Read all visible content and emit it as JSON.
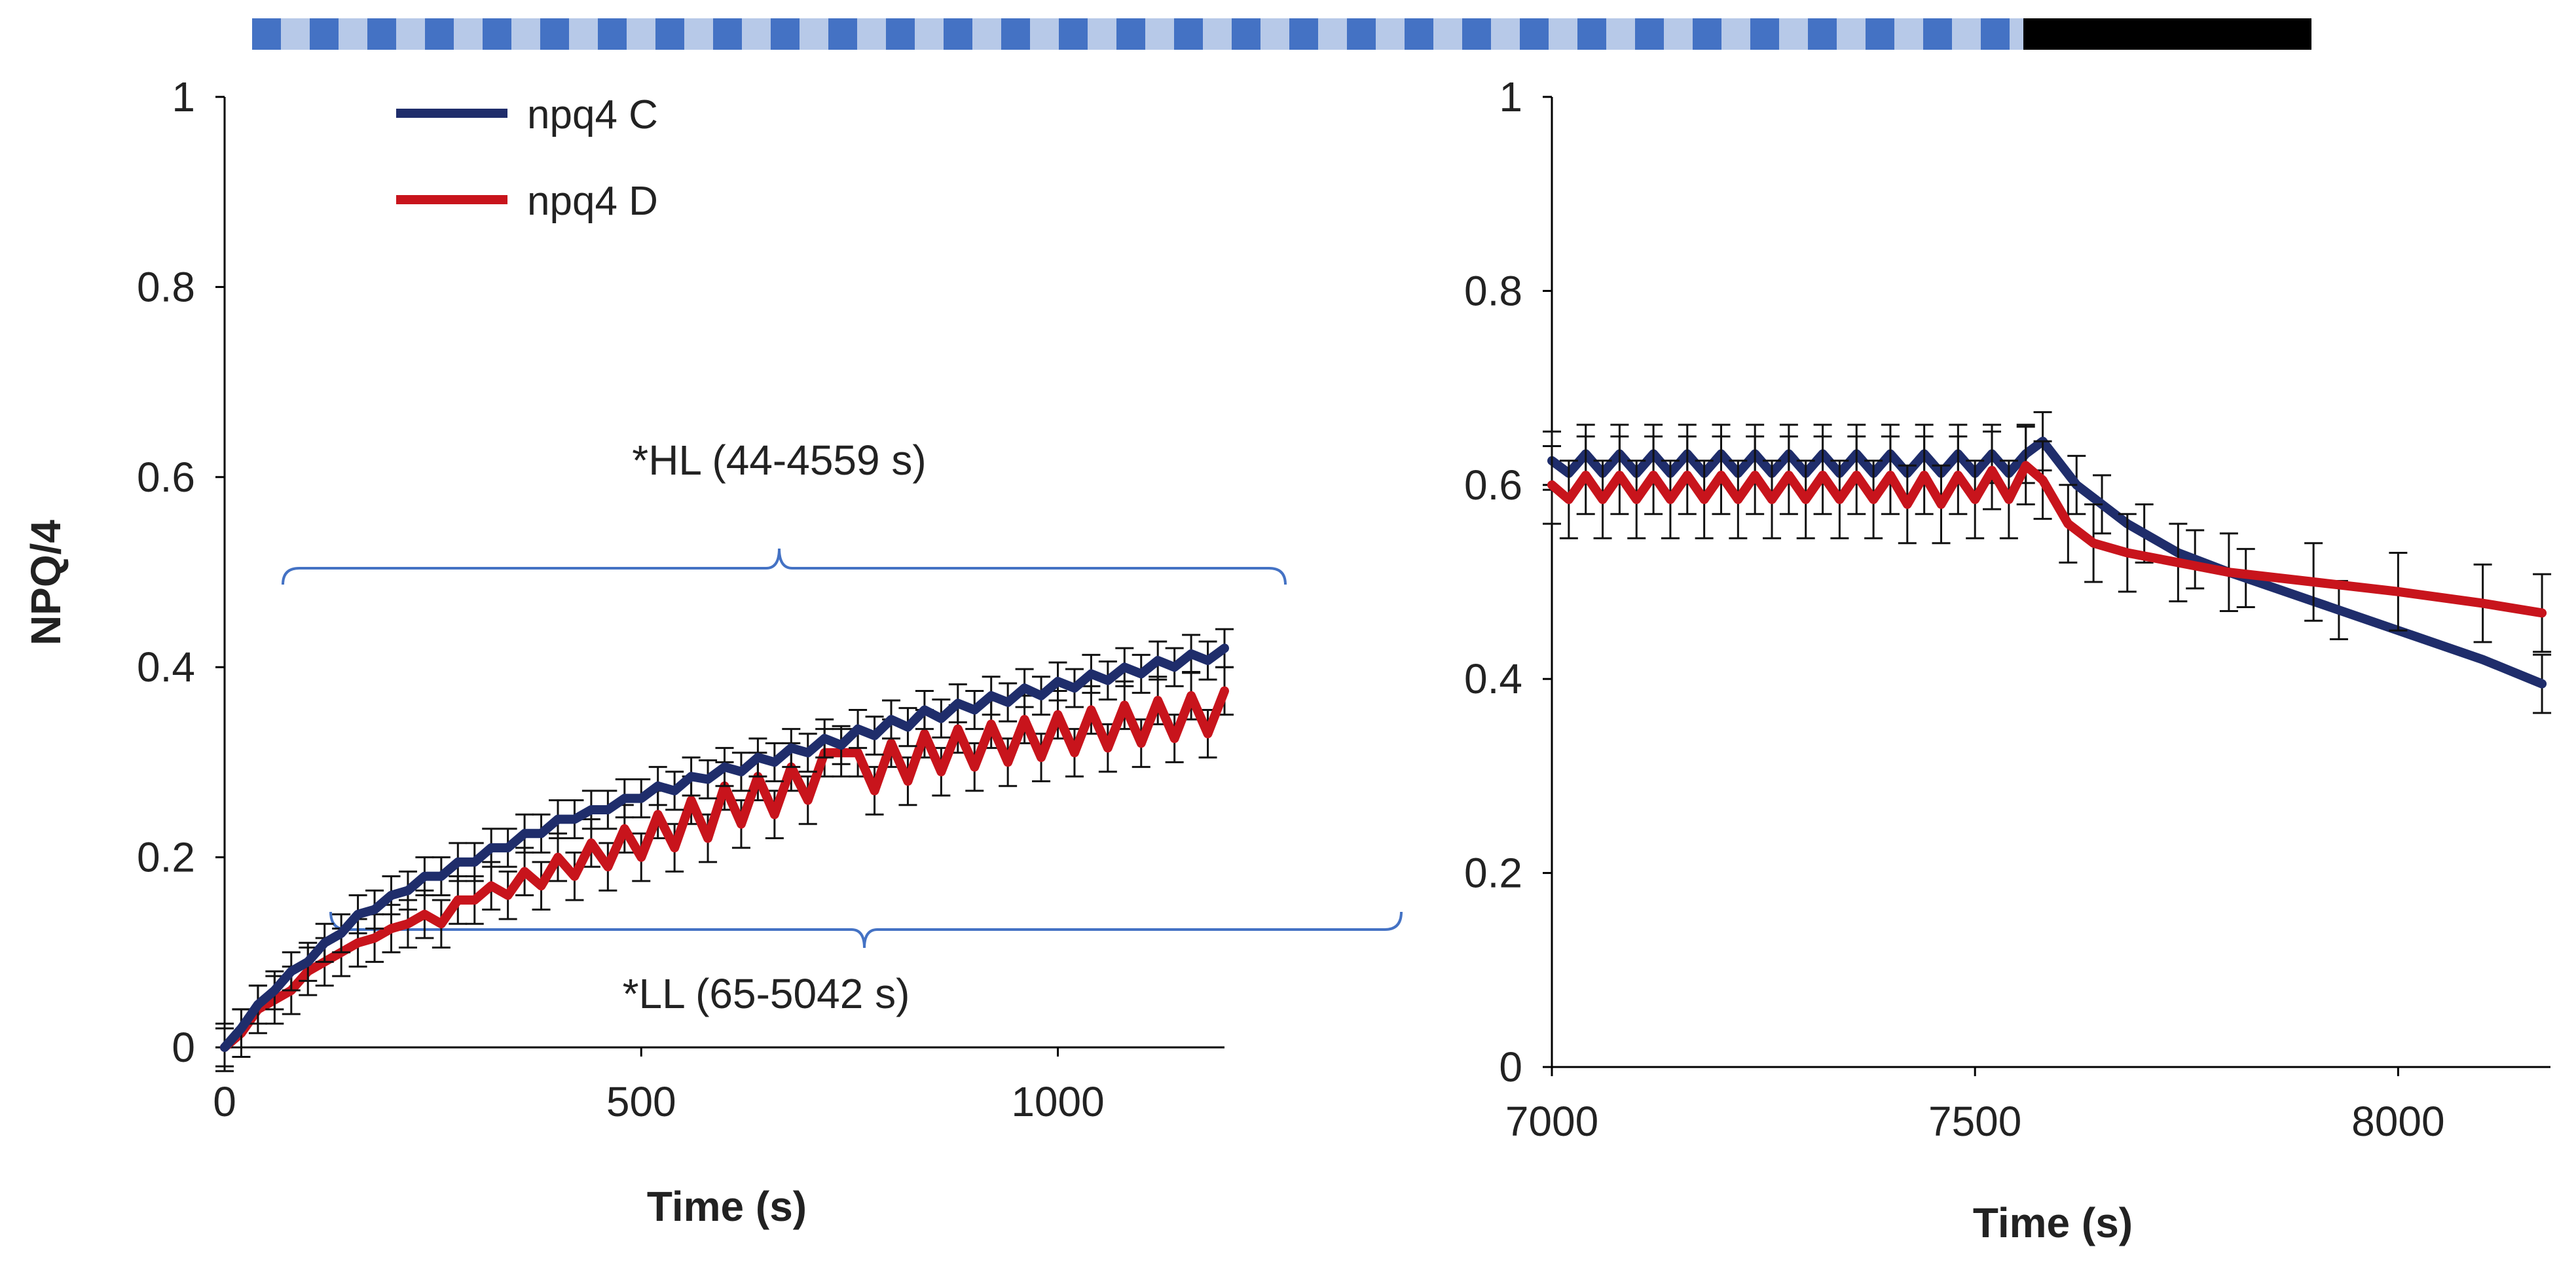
{
  "chart_data": [
    {
      "type": "line",
      "xlabel": "Time (s)",
      "ylabel": "NPQ/4",
      "xlim": [
        0,
        1200
      ],
      "ylim": [
        0,
        1
      ],
      "xticks": [
        0,
        500,
        1000
      ],
      "yticks": [
        0,
        0.2,
        0.4,
        0.6,
        0.8,
        1
      ],
      "ytick_labels": [
        "0",
        "0.2",
        "0.4",
        "0.6",
        "0.8",
        "1"
      ],
      "legend": {
        "placement": "top-left",
        "entries": [
          "npq4 C",
          "npq4 D"
        ]
      },
      "annotations": [
        "*HL (44-4559 s)",
        "*LL (65-5042 s)"
      ],
      "series": [
        {
          "name": "npq4 C",
          "color": "#1f2d6b",
          "x": [
            0,
            20,
            40,
            60,
            80,
            100,
            120,
            140,
            160,
            180,
            200,
            220,
            240,
            260,
            280,
            300,
            320,
            340,
            360,
            380,
            400,
            420,
            440,
            460,
            480,
            500,
            520,
            540,
            560,
            580,
            600,
            620,
            640,
            660,
            680,
            700,
            720,
            740,
            760,
            780,
            800,
            820,
            840,
            860,
            880,
            900,
            920,
            940,
            960,
            980,
            1000,
            1020,
            1040,
            1060,
            1080,
            1100,
            1120,
            1140,
            1160,
            1180,
            1200
          ],
          "y": [
            0.0,
            0.02,
            0.045,
            0.06,
            0.08,
            0.09,
            0.11,
            0.12,
            0.14,
            0.145,
            0.16,
            0.165,
            0.18,
            0.18,
            0.195,
            0.195,
            0.21,
            0.21,
            0.225,
            0.225,
            0.24,
            0.24,
            0.25,
            0.25,
            0.262,
            0.262,
            0.275,
            0.27,
            0.285,
            0.282,
            0.295,
            0.29,
            0.305,
            0.3,
            0.315,
            0.31,
            0.325,
            0.318,
            0.335,
            0.328,
            0.345,
            0.337,
            0.355,
            0.346,
            0.362,
            0.355,
            0.37,
            0.363,
            0.378,
            0.37,
            0.385,
            0.378,
            0.393,
            0.386,
            0.4,
            0.393,
            0.407,
            0.4,
            0.414,
            0.407,
            0.42
          ],
          "error": 0.02
        },
        {
          "name": "npq4 D",
          "color": "#c8141c",
          "x": [
            0,
            20,
            40,
            60,
            80,
            100,
            120,
            140,
            160,
            180,
            200,
            220,
            240,
            260,
            280,
            300,
            320,
            340,
            360,
            380,
            400,
            420,
            440,
            460,
            480,
            500,
            520,
            540,
            560,
            580,
            600,
            620,
            640,
            660,
            680,
            700,
            720,
            740,
            760,
            780,
            800,
            820,
            840,
            860,
            880,
            900,
            920,
            940,
            960,
            980,
            1000,
            1020,
            1040,
            1060,
            1080,
            1100,
            1120,
            1140,
            1160,
            1180,
            1200
          ],
          "y": [
            0.0,
            0.015,
            0.04,
            0.05,
            0.06,
            0.08,
            0.09,
            0.1,
            0.11,
            0.115,
            0.125,
            0.13,
            0.14,
            0.13,
            0.155,
            0.155,
            0.17,
            0.16,
            0.185,
            0.17,
            0.2,
            0.18,
            0.215,
            0.19,
            0.23,
            0.2,
            0.245,
            0.21,
            0.26,
            0.22,
            0.275,
            0.235,
            0.285,
            0.245,
            0.295,
            0.26,
            0.31,
            0.31,
            0.31,
            0.27,
            0.32,
            0.28,
            0.33,
            0.29,
            0.335,
            0.295,
            0.34,
            0.3,
            0.345,
            0.305,
            0.35,
            0.31,
            0.355,
            0.315,
            0.36,
            0.32,
            0.365,
            0.325,
            0.37,
            0.33,
            0.375
          ],
          "error": 0.025
        }
      ]
    },
    {
      "type": "line",
      "xlabel": "Time (s)",
      "ylabel": "",
      "xlim": [
        7000,
        8180
      ],
      "ylim": [
        0,
        1
      ],
      "xticks": [
        7000,
        7500,
        8000
      ],
      "yticks": [
        0,
        0.2,
        0.4,
        0.6,
        0.8,
        1
      ],
      "ytick_labels": [
        "0",
        "0.2",
        "0.4",
        "0.6",
        "0.8",
        "1"
      ],
      "top_bar": {
        "light_color": "#b7c9e8",
        "dark_color": "#4472c4",
        "dark_period_color": "#000000"
      },
      "series": [
        {
          "name": "npq4 C",
          "color": "#1f2d6b",
          "x": [
            7000,
            7020,
            7040,
            7060,
            7080,
            7100,
            7120,
            7140,
            7160,
            7180,
            7200,
            7220,
            7240,
            7260,
            7280,
            7300,
            7320,
            7340,
            7360,
            7380,
            7400,
            7420,
            7440,
            7460,
            7480,
            7500,
            7520,
            7540,
            7560,
            7580,
            7620,
            7680,
            7740,
            7800,
            7900,
            8000,
            8100,
            8170
          ],
          "y": [
            0.625,
            0.612,
            0.632,
            0.612,
            0.632,
            0.612,
            0.632,
            0.612,
            0.632,
            0.612,
            0.632,
            0.612,
            0.632,
            0.612,
            0.632,
            0.612,
            0.632,
            0.612,
            0.632,
            0.612,
            0.632,
            0.612,
            0.632,
            0.612,
            0.632,
            0.612,
            0.632,
            0.612,
            0.632,
            0.645,
            0.6,
            0.56,
            0.53,
            0.51,
            0.48,
            0.45,
            0.42,
            0.395
          ],
          "error_x": [
            7000,
            7040,
            7080,
            7120,
            7160,
            7200,
            7240,
            7280,
            7320,
            7360,
            7400,
            7440,
            7480,
            7520,
            7560,
            7580,
            7620,
            7650,
            7700,
            7760,
            7820,
            7930,
            8170
          ],
          "error": 0.03
        },
        {
          "name": "npq4 D",
          "color": "#c8141c",
          "x": [
            7000,
            7020,
            7040,
            7060,
            7080,
            7100,
            7120,
            7140,
            7160,
            7180,
            7200,
            7220,
            7240,
            7260,
            7280,
            7300,
            7320,
            7340,
            7360,
            7380,
            7400,
            7420,
            7440,
            7460,
            7480,
            7500,
            7520,
            7540,
            7560,
            7580,
            7610,
            7640,
            7680,
            7740,
            7800,
            7900,
            8000,
            8100,
            8170
          ],
          "y": [
            0.6,
            0.585,
            0.61,
            0.585,
            0.61,
            0.585,
            0.61,
            0.585,
            0.61,
            0.585,
            0.61,
            0.585,
            0.61,
            0.585,
            0.61,
            0.585,
            0.61,
            0.585,
            0.61,
            0.585,
            0.61,
            0.58,
            0.61,
            0.58,
            0.61,
            0.585,
            0.615,
            0.585,
            0.62,
            0.605,
            0.56,
            0.54,
            0.53,
            0.52,
            0.51,
            0.5,
            0.49,
            0.478,
            0.468
          ],
          "error": 0.04
        }
      ]
    }
  ]
}
